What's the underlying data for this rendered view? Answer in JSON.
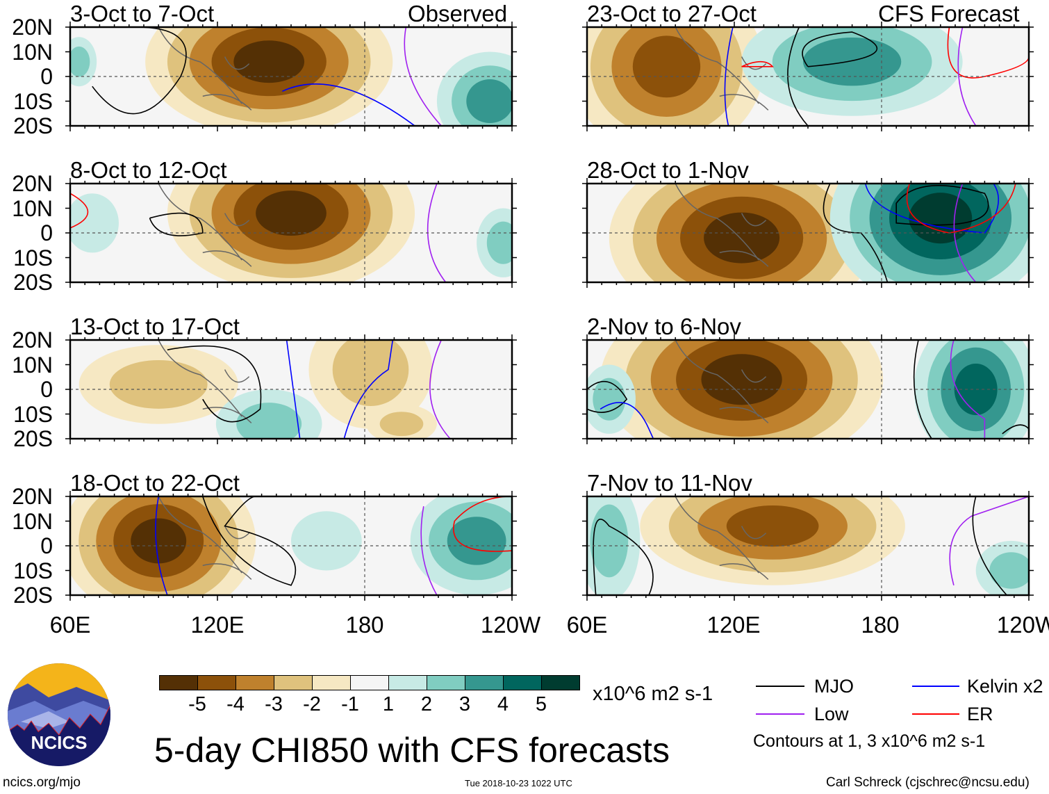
{
  "title": "5-day CHI850 with CFS forecasts",
  "url": "ncics.org/mjo",
  "timestamp": "Tue 2018-10-23 1022 UTC",
  "author": "Carl Schreck (cjschrec@ncsu.edu)",
  "logo_text": "NCICS",
  "columns": {
    "left_label": "Observed",
    "right_label": "CFS Forecast"
  },
  "lat_labels": [
    "20N",
    "10N",
    "0",
    "10S",
    "20S"
  ],
  "lon_labels": [
    "60E",
    "120E",
    "180",
    "120W"
  ],
  "panels": {
    "left": [
      {
        "title": "3-Oct to 7-Oct"
      },
      {
        "title": "8-Oct to 12-Oct"
      },
      {
        "title": "13-Oct to 17-Oct"
      },
      {
        "title": "18-Oct to 22-Oct"
      }
    ],
    "right": [
      {
        "title": "23-Oct to 27-Oct"
      },
      {
        "title": "28-Oct to 1-Nov"
      },
      {
        "title": "2-Nov to 6-Nov"
      },
      {
        "title": "7-Nov to 11-Nov"
      }
    ]
  },
  "colorbar": {
    "units": "x10^6 m2 s-1",
    "labels": [
      "-5",
      "-4",
      "-3",
      "-2",
      "-1",
      "1",
      "2",
      "3",
      "4",
      "5"
    ],
    "colors": [
      "#543005",
      "#8c510a",
      "#bf812d",
      "#dfc27d",
      "#f6e8c3",
      "#f5f5f5",
      "#c7eae5",
      "#80cdc1",
      "#35978f",
      "#01665e",
      "#003c30"
    ]
  },
  "legend": {
    "items": [
      {
        "label": "MJO",
        "color": "#000000"
      },
      {
        "label": "Kelvin x2",
        "color": "#0000ff"
      },
      {
        "label": "Low",
        "color": "#a020f0"
      },
      {
        "label": "ER",
        "color": "#ff0000"
      }
    ],
    "note": "Contours at 1, 3 x10^6 m2 s-1"
  }
}
